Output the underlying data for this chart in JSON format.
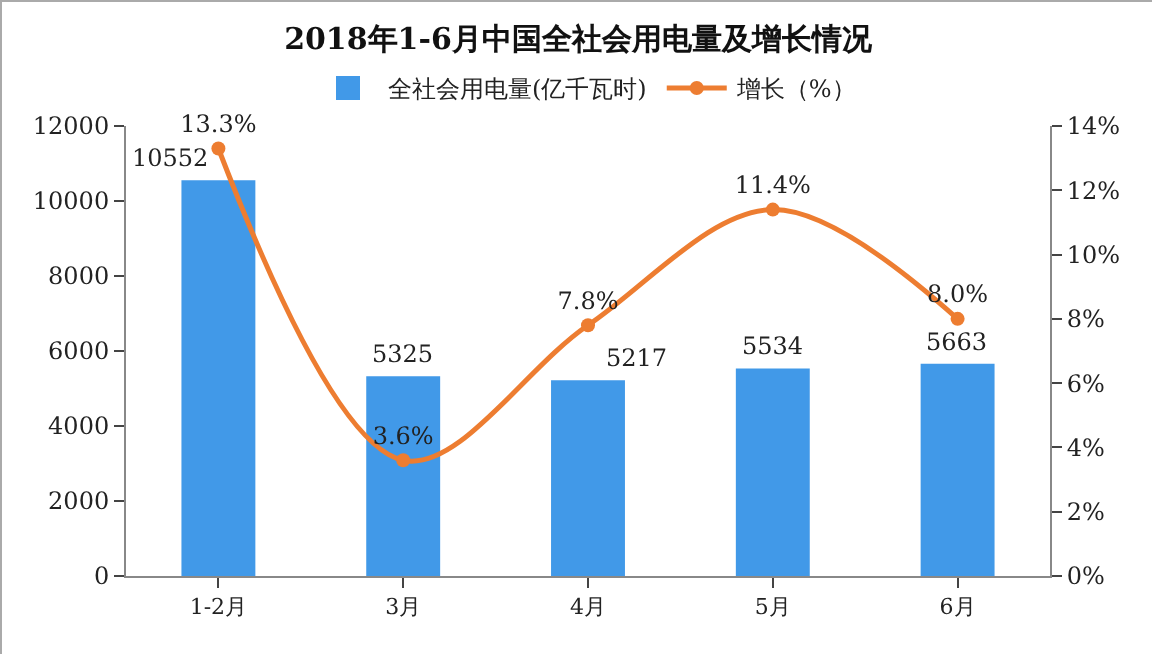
{
  "chart_data": {
    "type": "bar",
    "title": "2018年1-6月中国全社会用电量及增长情况",
    "categories": [
      "1-2月",
      "3月",
      "4月",
      "5月",
      "6月"
    ],
    "series": [
      {
        "name": "全社会用电量(亿千瓦时)",
        "color": "#4199e8",
        "values": [
          10552,
          5325,
          5217,
          5534,
          5663
        ],
        "value_labels": [
          "10552",
          "5325",
          "5217",
          "5534",
          "5663"
        ]
      },
      {
        "name": "增长（%）",
        "type": "line",
        "axis": "y2",
        "color": "#ed7d31",
        "values": [
          13.3,
          3.6,
          7.8,
          11.4,
          8.0
        ],
        "value_labels": [
          "13.3%",
          "3.6%",
          "7.8%",
          "11.4%",
          "8.0%"
        ]
      }
    ],
    "ylim": [
      0,
      12000
    ],
    "yticks": [
      0,
      2000,
      4000,
      6000,
      8000,
      10000,
      12000
    ],
    "y2lim": [
      0,
      14
    ],
    "y2ticks": [
      {
        "value": 0,
        "label": "0%"
      },
      {
        "value": 2,
        "label": "2%"
      },
      {
        "value": 4,
        "label": "4%"
      },
      {
        "value": 6,
        "label": "6%"
      },
      {
        "value": 8,
        "label": "8%"
      },
      {
        "value": 10,
        "label": "10%"
      },
      {
        "value": 12,
        "label": "12%"
      },
      {
        "value": 14,
        "label": "14%"
      }
    ],
    "grid": false,
    "legend": "top",
    "marker": "circle",
    "line_style": "solid"
  }
}
